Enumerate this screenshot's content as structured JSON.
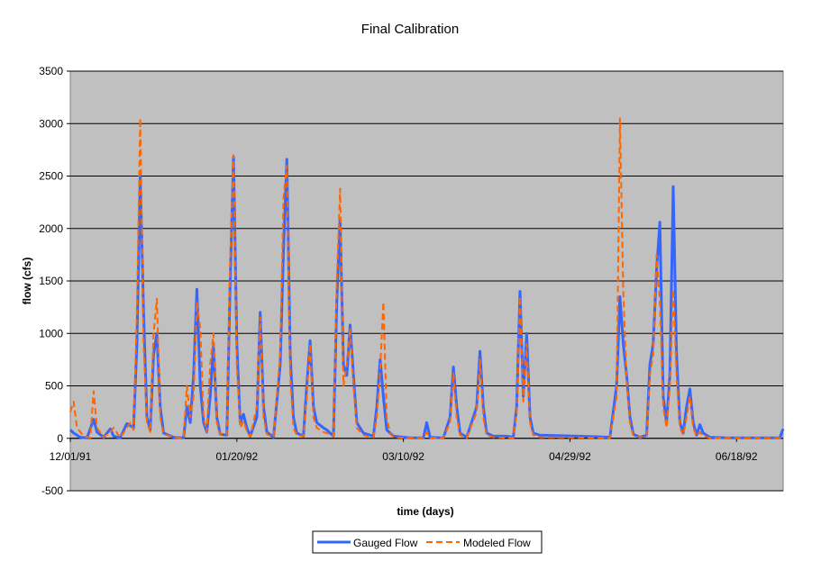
{
  "chart_data": {
    "type": "line",
    "title": "Final Calibration",
    "xlabel": "time (days)",
    "ylabel": "flow (cfs)",
    "ylim": [
      -500,
      3500
    ],
    "yticks": [
      -500,
      0,
      500,
      1000,
      1500,
      2000,
      2500,
      3000,
      3500
    ],
    "xlim": [
      "12/01/91",
      "07/02/92"
    ],
    "xticks": [
      "12/01/91",
      "01/20/92",
      "03/10/92",
      "04/29/92",
      "06/18/92"
    ],
    "grid": true,
    "legend_position": "bottom",
    "colors": {
      "plot_background": "#c0c0c0",
      "gauged": "#3366ff",
      "modeled": "#ff6600"
    },
    "series": [
      {
        "name": "Gauged Flow",
        "style": "solid",
        "points": [
          [
            "12/01/91",
            80
          ],
          [
            "12/02/91",
            50
          ],
          [
            "12/04/91",
            10
          ],
          [
            "12/06/91",
            5
          ],
          [
            "12/08/91",
            180
          ],
          [
            "12/09/91",
            60
          ],
          [
            "12/11/91",
            10
          ],
          [
            "12/13/91",
            90
          ],
          [
            "12/14/91",
            20
          ],
          [
            "12/16/91",
            5
          ],
          [
            "12/18/91",
            140
          ],
          [
            "12/19/91",
            120
          ],
          [
            "12/20/91",
            100
          ],
          [
            "12/21/91",
            900
          ],
          [
            "12/22/91",
            2500
          ],
          [
            "12/23/91",
            1200
          ],
          [
            "12/24/91",
            200
          ],
          [
            "12/25/91",
            80
          ],
          [
            "12/26/91",
            800
          ],
          [
            "12/27/91",
            1000
          ],
          [
            "12/28/91",
            300
          ],
          [
            "12/29/91",
            50
          ],
          [
            "01/01/92",
            10
          ],
          [
            "01/04/92",
            5
          ],
          [
            "01/05/92",
            300
          ],
          [
            "01/06/92",
            150
          ],
          [
            "01/07/92",
            600
          ],
          [
            "01/08/92",
            1420
          ],
          [
            "01/09/92",
            500
          ],
          [
            "01/10/92",
            150
          ],
          [
            "01/11/92",
            60
          ],
          [
            "01/12/92",
            400
          ],
          [
            "01/13/92",
            880
          ],
          [
            "01/14/92",
            200
          ],
          [
            "01/15/92",
            40
          ],
          [
            "01/17/92",
            30
          ],
          [
            "01/18/92",
            1500
          ],
          [
            "01/19/92",
            2680
          ],
          [
            "01/20/92",
            900
          ],
          [
            "01/21/92",
            150
          ],
          [
            "01/22/92",
            230
          ],
          [
            "01/23/92",
            100
          ],
          [
            "01/24/92",
            20
          ],
          [
            "01/26/92",
            200
          ],
          [
            "01/27/92",
            1200
          ],
          [
            "01/28/92",
            300
          ],
          [
            "01/29/92",
            60
          ],
          [
            "01/31/92",
            10
          ],
          [
            "02/02/92",
            700
          ],
          [
            "02/03/92",
            1800
          ],
          [
            "02/04/92",
            2660
          ],
          [
            "02/05/92",
            800
          ],
          [
            "02/06/92",
            200
          ],
          [
            "02/07/92",
            50
          ],
          [
            "02/09/92",
            20
          ],
          [
            "02/10/92",
            500
          ],
          [
            "02/11/92",
            930
          ],
          [
            "02/12/92",
            300
          ],
          [
            "02/13/92",
            150
          ],
          [
            "02/15/92",
            100
          ],
          [
            "02/16/92",
            80
          ],
          [
            "02/18/92",
            20
          ],
          [
            "02/19/92",
            1300
          ],
          [
            "02/20/92",
            2100
          ],
          [
            "02/21/92",
            700
          ],
          [
            "02/22/92",
            600
          ],
          [
            "02/23/92",
            1080
          ],
          [
            "02/24/92",
            600
          ],
          [
            "02/25/92",
            150
          ],
          [
            "02/27/92",
            50
          ],
          [
            "03/01/92",
            20
          ],
          [
            "03/02/92",
            300
          ],
          [
            "03/03/92",
            750
          ],
          [
            "03/04/92",
            400
          ],
          [
            "03/05/92",
            80
          ],
          [
            "03/07/92",
            20
          ],
          [
            "03/12/92",
            5
          ],
          [
            "03/16/92",
            5
          ],
          [
            "03/17/92",
            150
          ],
          [
            "03/18/92",
            10
          ],
          [
            "03/22/92",
            5
          ],
          [
            "03/24/92",
            200
          ],
          [
            "03/25/92",
            680
          ],
          [
            "03/26/92",
            300
          ],
          [
            "03/27/92",
            50
          ],
          [
            "03/29/92",
            10
          ],
          [
            "04/01/92",
            300
          ],
          [
            "04/02/92",
            830
          ],
          [
            "04/03/92",
            300
          ],
          [
            "04/04/92",
            50
          ],
          [
            "04/06/92",
            20
          ],
          [
            "04/10/92",
            20
          ],
          [
            "04/12/92",
            10
          ],
          [
            "04/13/92",
            300
          ],
          [
            "04/14/92",
            1400
          ],
          [
            "04/15/92",
            400
          ],
          [
            "04/16/92",
            1000
          ],
          [
            "04/17/92",
            200
          ],
          [
            "04/18/92",
            50
          ],
          [
            "04/20/92",
            30
          ],
          [
            "04/25/92",
            25
          ],
          [
            "05/01/92",
            20
          ],
          [
            "05/07/92",
            15
          ],
          [
            "05/11/92",
            10
          ],
          [
            "05/13/92",
            500
          ],
          [
            "05/14/92",
            1350
          ],
          [
            "05/15/92",
            900
          ],
          [
            "05/16/92",
            600
          ],
          [
            "05/17/92",
            200
          ],
          [
            "05/18/92",
            40
          ],
          [
            "05/20/92",
            10
          ],
          [
            "05/22/92",
            30
          ],
          [
            "05/23/92",
            700
          ],
          [
            "05/24/92",
            900
          ],
          [
            "05/25/92",
            1600
          ],
          [
            "05/26/92",
            2060
          ],
          [
            "05/27/92",
            400
          ],
          [
            "05/28/92",
            150
          ],
          [
            "05/29/92",
            600
          ],
          [
            "05/30/92",
            2400
          ],
          [
            "05/31/92",
            800
          ],
          [
            "06/01/92",
            150
          ],
          [
            "06/02/92",
            50
          ],
          [
            "06/03/92",
            300
          ],
          [
            "06/04/92",
            470
          ],
          [
            "06/05/92",
            150
          ],
          [
            "06/06/92",
            30
          ],
          [
            "06/07/92",
            130
          ],
          [
            "06/08/92",
            50
          ],
          [
            "06/10/92",
            10
          ],
          [
            "06/15/92",
            5
          ],
          [
            "06/25/92",
            5
          ],
          [
            "07/01/92",
            5
          ],
          [
            "07/02/92",
            90
          ]
        ]
      },
      {
        "name": "Modeled Flow",
        "style": "dashed",
        "points": [
          [
            "12/01/91",
            250
          ],
          [
            "12/02/91",
            350
          ],
          [
            "12/03/91",
            100
          ],
          [
            "12/05/91",
            20
          ],
          [
            "12/07/91",
            5
          ],
          [
            "12/08/91",
            450
          ],
          [
            "12/09/91",
            100
          ],
          [
            "12/11/91",
            10
          ],
          [
            "12/13/91",
            60
          ],
          [
            "12/14/91",
            100
          ],
          [
            "12/16/91",
            5
          ],
          [
            "12/18/91",
            100
          ],
          [
            "12/19/91",
            150
          ],
          [
            "12/20/91",
            80
          ],
          [
            "12/21/91",
            1200
          ],
          [
            "12/22/91",
            3050
          ],
          [
            "12/23/91",
            900
          ],
          [
            "12/24/91",
            150
          ],
          [
            "12/25/91",
            60
          ],
          [
            "12/26/91",
            1000
          ],
          [
            "12/27/91",
            1330
          ],
          [
            "12/28/91",
            200
          ],
          [
            "12/29/91",
            40
          ],
          [
            "01/01/92",
            10
          ],
          [
            "01/04/92",
            5
          ],
          [
            "01/05/92",
            500
          ],
          [
            "01/06/92",
            200
          ],
          [
            "01/07/92",
            400
          ],
          [
            "01/08/92",
            1300
          ],
          [
            "01/09/92",
            1050
          ],
          [
            "01/10/92",
            200
          ],
          [
            "01/11/92",
            60
          ],
          [
            "01/12/92",
            700
          ],
          [
            "01/13/92",
            1000
          ],
          [
            "01/14/92",
            150
          ],
          [
            "01/15/92",
            40
          ],
          [
            "01/17/92",
            30
          ],
          [
            "01/18/92",
            1700
          ],
          [
            "01/19/92",
            2700
          ],
          [
            "01/20/92",
            700
          ],
          [
            "01/21/92",
            100
          ],
          [
            "01/22/92",
            160
          ],
          [
            "01/23/92",
            70
          ],
          [
            "01/24/92",
            15
          ],
          [
            "01/26/92",
            300
          ],
          [
            "01/27/92",
            1150
          ],
          [
            "01/28/92",
            200
          ],
          [
            "01/29/92",
            40
          ],
          [
            "01/31/92",
            10
          ],
          [
            "02/02/92",
            800
          ],
          [
            "02/03/92",
            2300
          ],
          [
            "02/04/92",
            2600
          ],
          [
            "02/05/92",
            600
          ],
          [
            "02/06/92",
            100
          ],
          [
            "02/07/92",
            30
          ],
          [
            "02/09/92",
            20
          ],
          [
            "02/10/92",
            400
          ],
          [
            "02/11/92",
            900
          ],
          [
            "02/12/92",
            200
          ],
          [
            "02/13/92",
            100
          ],
          [
            "02/15/92",
            60
          ],
          [
            "02/16/92",
            50
          ],
          [
            "02/18/92",
            20
          ],
          [
            "02/19/92",
            1500
          ],
          [
            "02/20/92",
            2380
          ],
          [
            "02/21/92",
            500
          ],
          [
            "02/22/92",
            700
          ],
          [
            "02/23/92",
            1050
          ],
          [
            "02/24/92",
            500
          ],
          [
            "02/25/92",
            100
          ],
          [
            "02/27/92",
            30
          ],
          [
            "03/01/92",
            10
          ],
          [
            "03/02/92",
            200
          ],
          [
            "03/03/92",
            650
          ],
          [
            "03/04/92",
            1300
          ],
          [
            "03/05/92",
            200
          ],
          [
            "03/06/92",
            50
          ],
          [
            "03/07/92",
            10
          ],
          [
            "03/12/92",
            5
          ],
          [
            "03/16/92",
            5
          ],
          [
            "03/17/92",
            60
          ],
          [
            "03/18/92",
            5
          ],
          [
            "03/22/92",
            5
          ],
          [
            "03/24/92",
            150
          ],
          [
            "03/25/92",
            620
          ],
          [
            "03/26/92",
            200
          ],
          [
            "03/27/92",
            30
          ],
          [
            "03/29/92",
            5
          ],
          [
            "04/01/92",
            250
          ],
          [
            "04/02/92",
            750
          ],
          [
            "04/03/92",
            200
          ],
          [
            "04/04/92",
            30
          ],
          [
            "04/06/92",
            10
          ],
          [
            "04/12/92",
            5
          ],
          [
            "04/13/92",
            250
          ],
          [
            "04/14/92",
            1350
          ],
          [
            "04/15/92",
            350
          ],
          [
            "04/16/92",
            900
          ],
          [
            "04/17/92",
            150
          ],
          [
            "04/18/92",
            30
          ],
          [
            "04/20/92",
            10
          ],
          [
            "05/11/92",
            5
          ],
          [
            "05/13/92",
            400
          ],
          [
            "05/14/92",
            3050
          ],
          [
            "05/15/92",
            1400
          ],
          [
            "05/16/92",
            550
          ],
          [
            "05/17/92",
            150
          ],
          [
            "05/18/92",
            30
          ],
          [
            "05/20/92",
            10
          ],
          [
            "05/22/92",
            20
          ],
          [
            "05/23/92",
            600
          ],
          [
            "05/24/92",
            800
          ],
          [
            "05/25/92",
            1750
          ],
          [
            "05/26/92",
            1300
          ],
          [
            "05/27/92",
            300
          ],
          [
            "05/28/92",
            100
          ],
          [
            "05/29/92",
            500
          ],
          [
            "05/30/92",
            1420
          ],
          [
            "05/31/92",
            600
          ],
          [
            "06/01/92",
            100
          ],
          [
            "06/02/92",
            30
          ],
          [
            "06/03/92",
            200
          ],
          [
            "06/04/92",
            400
          ],
          [
            "06/05/92",
            100
          ],
          [
            "06/06/92",
            20
          ],
          [
            "06/07/92",
            60
          ],
          [
            "06/08/92",
            20
          ],
          [
            "06/10/92",
            5
          ],
          [
            "07/02/92",
            5
          ]
        ]
      }
    ]
  }
}
